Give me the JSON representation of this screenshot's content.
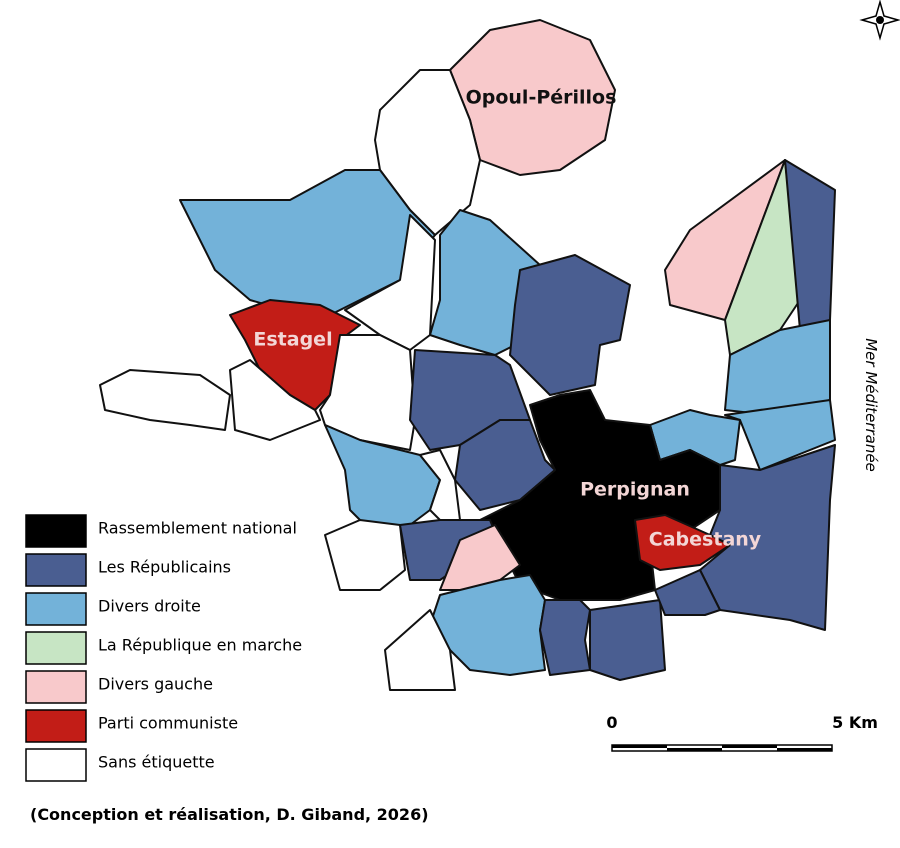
{
  "places": [
    {
      "label": "Opoul-Périllos",
      "color": "#111111"
    },
    {
      "label": "Estagel",
      "color": "#f3d6d6"
    },
    {
      "label": "Perpignan",
      "color": "#f3d6d6"
    },
    {
      "label": "Cabestany",
      "color": "#f3d6d6"
    }
  ],
  "sea_label": "Mer Méditerranée",
  "legend": [
    {
      "label": "Rassemblement national",
      "color": "#000000"
    },
    {
      "label": "Les Républicains",
      "color": "#4a5e91"
    },
    {
      "label": "Divers droite",
      "color": "#73b2d9"
    },
    {
      "label": "La République en marche",
      "color": "#c7e5c4"
    },
    {
      "label": "Divers gauche",
      "color": "#f8c9cb"
    },
    {
      "label": "Parti communiste",
      "color": "#c21d17"
    },
    {
      "label": "Sans étiquette",
      "color": "#ffffff"
    }
  ],
  "scale_labels": [
    "0",
    "5 Km"
  ],
  "credit": "(Conception et réalisation, D. Giband, 2026)"
}
